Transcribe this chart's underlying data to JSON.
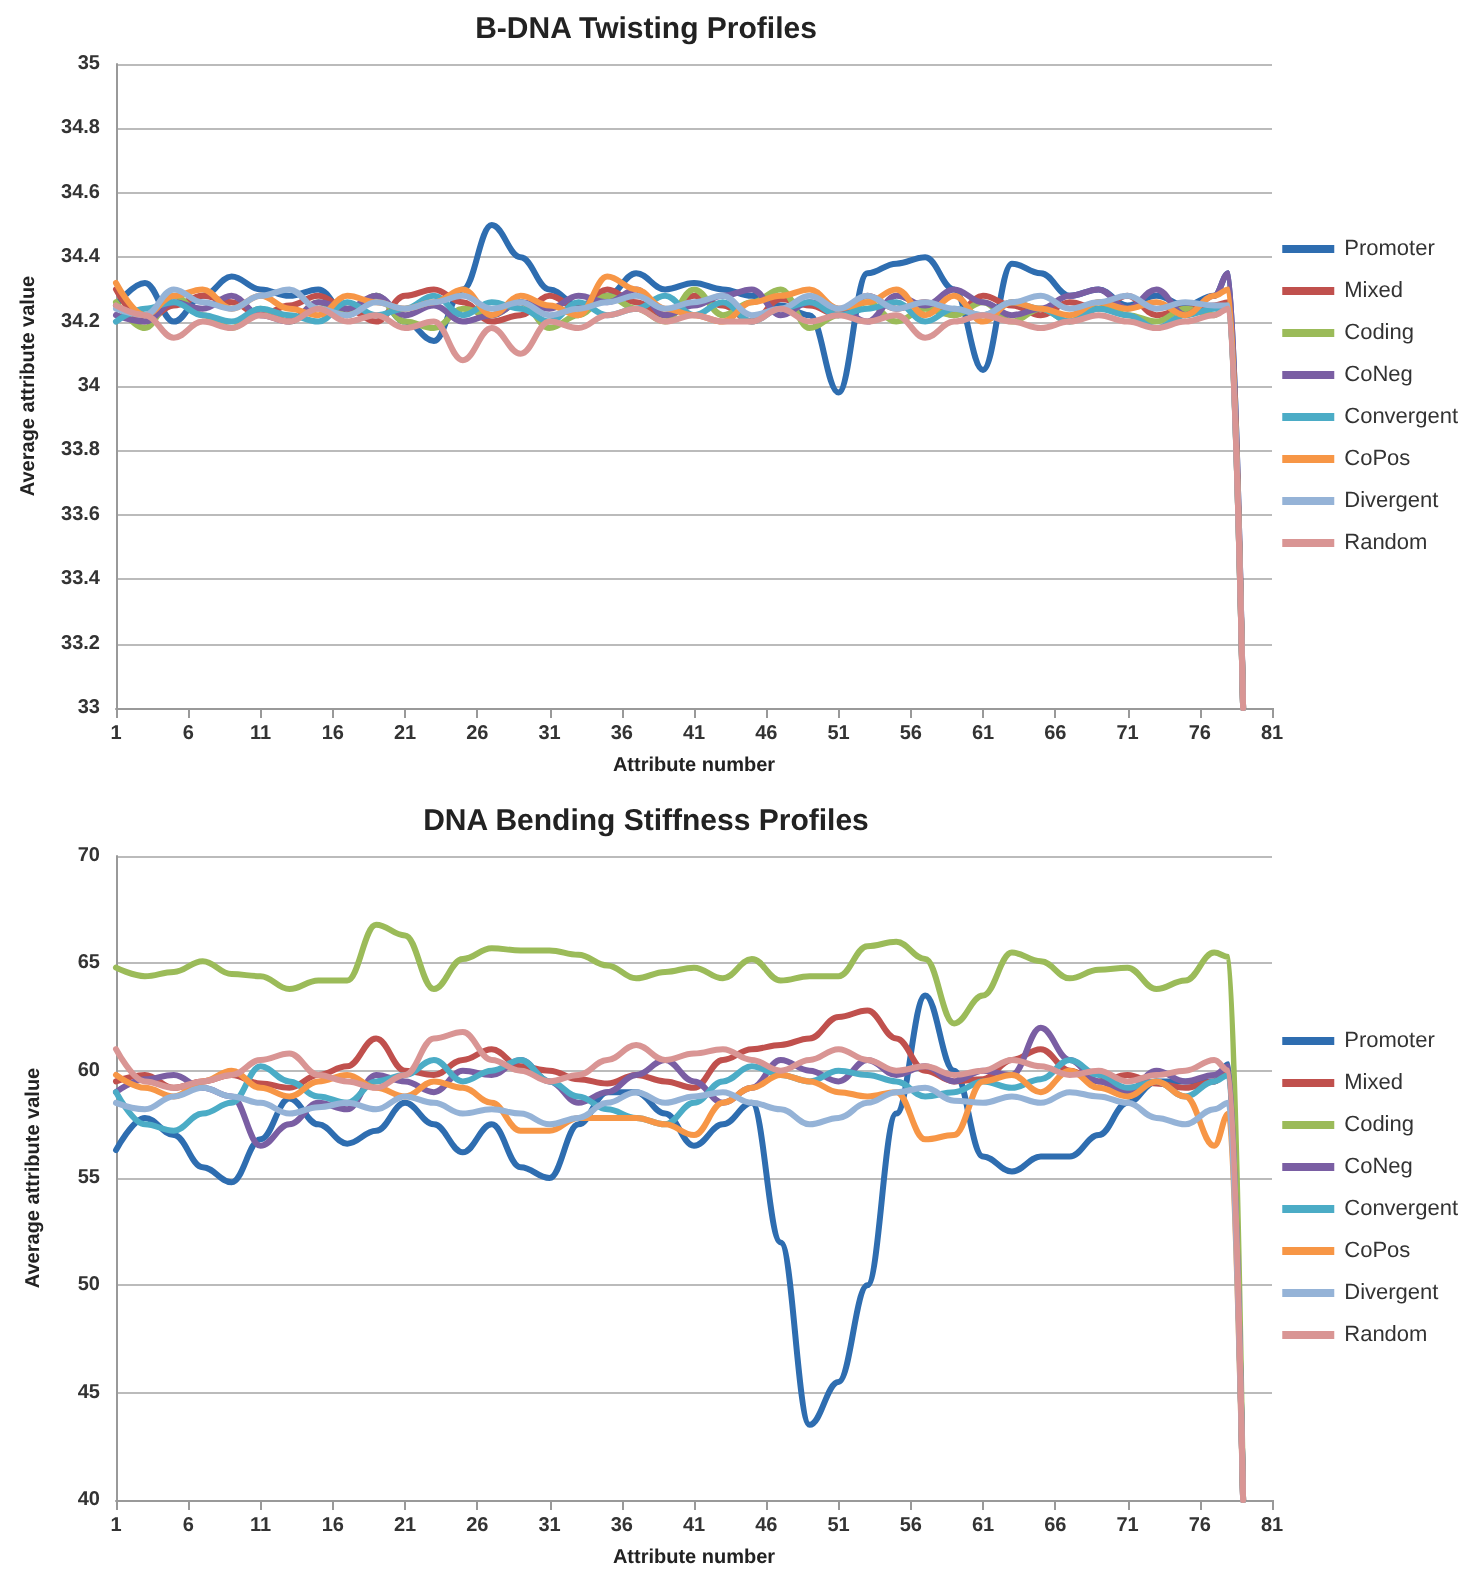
{
  "chart_data": [
    {
      "type": "line",
      "title": "B-DNA Twisting Profiles",
      "xlabel": "Attribute number",
      "ylabel": "Average attribute value",
      "x": [
        1,
        3,
        5,
        7,
        9,
        11,
        13,
        15,
        17,
        19,
        21,
        23,
        25,
        27,
        29,
        31,
        33,
        35,
        37,
        39,
        41,
        43,
        45,
        47,
        49,
        51,
        53,
        55,
        57,
        59,
        61,
        63,
        65,
        67,
        69,
        71,
        73,
        75,
        77,
        78,
        79
      ],
      "xlim": [
        1,
        81
      ],
      "xticks": [
        1,
        6,
        11,
        16,
        21,
        26,
        31,
        36,
        41,
        46,
        51,
        56,
        61,
        66,
        71,
        76,
        81
      ],
      "ylim": [
        33,
        35
      ],
      "yticks": [
        33,
        33.2,
        33.4,
        33.6,
        33.8,
        34,
        34.2,
        34.4,
        34.6,
        34.8,
        35
      ],
      "grid": "y",
      "legend": "right",
      "marker": "none",
      "series": [
        {
          "name": "Promoter",
          "color": "#2e6db0",
          "values": [
            34.25,
            34.32,
            34.2,
            34.28,
            34.34,
            34.3,
            34.28,
            34.3,
            34.22,
            34.28,
            34.2,
            34.14,
            34.3,
            34.5,
            34.4,
            34.3,
            34.25,
            34.28,
            34.35,
            34.3,
            34.32,
            34.3,
            34.28,
            34.25,
            34.22,
            33.98,
            34.35,
            34.38,
            34.4,
            34.3,
            34.05,
            34.38,
            34.35,
            34.28,
            34.3,
            34.25,
            34.28,
            34.25,
            34.28,
            34.35,
            33
          ]
        },
        {
          "name": "Mixed",
          "color": "#c0504d",
          "values": [
            34.3,
            34.2,
            34.25,
            34.28,
            34.26,
            34.22,
            34.25,
            34.28,
            34.24,
            34.2,
            34.28,
            34.3,
            34.26,
            34.2,
            34.22,
            34.28,
            34.24,
            34.3,
            34.26,
            34.22,
            34.28,
            34.25,
            34.2,
            34.27,
            34.25,
            34.22,
            34.28,
            34.24,
            34.26,
            34.22,
            34.28,
            34.25,
            34.22,
            34.26,
            34.24,
            34.28,
            34.22,
            34.24,
            34.25,
            34.26,
            33
          ]
        },
        {
          "name": "Coding",
          "color": "#9bbb59",
          "values": [
            34.26,
            34.18,
            34.28,
            34.22,
            34.18,
            34.24,
            34.2,
            34.26,
            34.22,
            34.28,
            34.2,
            34.18,
            34.24,
            34.22,
            34.26,
            34.18,
            34.22,
            34.28,
            34.24,
            34.2,
            34.3,
            34.22,
            34.26,
            34.3,
            34.18,
            34.22,
            34.26,
            34.2,
            34.24,
            34.22,
            34.26,
            34.2,
            34.24,
            34.2,
            34.26,
            34.22,
            34.2,
            34.24,
            34.22,
            34.25,
            33
          ]
        },
        {
          "name": "CoNeg",
          "color": "#7a5ea3",
          "values": [
            34.22,
            34.2,
            34.26,
            34.24,
            34.28,
            34.22,
            34.2,
            34.26,
            34.24,
            34.28,
            34.22,
            34.25,
            34.2,
            34.22,
            34.26,
            34.24,
            34.28,
            34.26,
            34.3,
            34.22,
            34.25,
            34.28,
            34.3,
            34.22,
            34.26,
            34.24,
            34.2,
            34.28,
            34.25,
            34.3,
            34.26,
            34.22,
            34.24,
            34.28,
            34.3,
            34.24,
            34.3,
            34.22,
            34.28,
            34.35,
            33
          ]
        },
        {
          "name": "Convergent",
          "color": "#4bacc6",
          "values": [
            34.2,
            34.24,
            34.26,
            34.22,
            34.2,
            34.24,
            34.22,
            34.2,
            34.26,
            34.22,
            34.24,
            34.28,
            34.22,
            34.26,
            34.24,
            34.2,
            34.26,
            34.22,
            34.24,
            34.28,
            34.22,
            34.26,
            34.2,
            34.24,
            34.26,
            34.22,
            34.24,
            34.26,
            34.2,
            34.24,
            34.22,
            34.26,
            34.24,
            34.2,
            34.24,
            34.22,
            34.18,
            34.22,
            34.24,
            34.25,
            33
          ]
        },
        {
          "name": "CoPos",
          "color": "#f79646",
          "values": [
            34.32,
            34.22,
            34.28,
            34.3,
            34.24,
            34.28,
            34.24,
            34.22,
            34.28,
            34.26,
            34.24,
            34.26,
            34.3,
            34.22,
            34.28,
            34.25,
            34.22,
            34.34,
            34.3,
            34.24,
            34.22,
            34.2,
            34.26,
            34.28,
            34.3,
            34.24,
            34.26,
            34.3,
            34.22,
            34.28,
            34.2,
            34.26,
            34.24,
            34.22,
            34.26,
            34.24,
            34.26,
            34.22,
            34.28,
            34.3,
            33
          ]
        },
        {
          "name": "Divergent",
          "color": "#95b3d7",
          "values": [
            34.24,
            34.22,
            34.3,
            34.26,
            34.24,
            34.28,
            34.3,
            34.24,
            34.22,
            34.26,
            34.24,
            34.26,
            34.28,
            34.24,
            34.26,
            34.22,
            34.24,
            34.26,
            34.28,
            34.24,
            34.26,
            34.28,
            34.22,
            34.24,
            34.28,
            34.24,
            34.28,
            34.24,
            34.26,
            34.24,
            34.22,
            34.26,
            34.28,
            34.24,
            34.26,
            34.28,
            34.24,
            34.26,
            34.25,
            34.25,
            33
          ]
        },
        {
          "name": "Random",
          "color": "#d99594",
          "values": [
            34.25,
            34.22,
            34.15,
            34.2,
            34.18,
            34.22,
            34.2,
            34.24,
            34.2,
            34.22,
            34.18,
            34.2,
            34.08,
            34.18,
            34.1,
            34.2,
            34.18,
            34.22,
            34.24,
            34.2,
            34.22,
            34.2,
            34.2,
            34.24,
            34.2,
            34.22,
            34.2,
            34.22,
            34.15,
            34.2,
            34.22,
            34.2,
            34.18,
            34.2,
            34.22,
            34.2,
            34.18,
            34.2,
            34.22,
            34.24,
            33
          ]
        }
      ]
    },
    {
      "type": "line",
      "title": "DNA Bending Stiffness Profiles",
      "xlabel": "Attribute number",
      "ylabel": "Average attribute value",
      "x": [
        1,
        3,
        5,
        7,
        9,
        11,
        13,
        15,
        17,
        19,
        21,
        23,
        25,
        27,
        29,
        31,
        33,
        35,
        37,
        39,
        41,
        43,
        45,
        47,
        49,
        51,
        53,
        55,
        57,
        59,
        61,
        63,
        65,
        67,
        69,
        71,
        73,
        75,
        77,
        78,
        79
      ],
      "xlim": [
        1,
        81
      ],
      "xticks": [
        1,
        6,
        11,
        16,
        21,
        26,
        31,
        36,
        41,
        46,
        51,
        56,
        61,
        66,
        71,
        76,
        81
      ],
      "ylim": [
        40,
        70
      ],
      "yticks": [
        40,
        45,
        50,
        55,
        60,
        65,
        70
      ],
      "grid": "y",
      "legend": "right",
      "marker": "none",
      "series": [
        {
          "name": "Promoter",
          "color": "#2e6db0",
          "values": [
            56.3,
            57.8,
            57,
            55.5,
            54.8,
            56.8,
            58.7,
            57.5,
            56.6,
            57.2,
            58.5,
            57.5,
            56.2,
            57.5,
            55.5,
            55,
            57.5,
            59,
            59,
            58,
            56.5,
            57.5,
            58.5,
            52,
            43.5,
            45.5,
            50,
            58,
            63.5,
            60,
            56,
            55.3,
            56,
            56,
            57,
            58.5,
            59.5,
            59.5,
            59.5,
            60.3,
            40
          ]
        },
        {
          "name": "Mixed",
          "color": "#c0504d",
          "values": [
            59.5,
            59.8,
            59.2,
            59.5,
            59.8,
            59.4,
            59.2,
            59.8,
            60.2,
            61.5,
            60,
            59.8,
            60.5,
            61,
            60.2,
            60,
            59.6,
            59.4,
            59.8,
            59.5,
            59.2,
            60.5,
            61,
            61.2,
            61.5,
            62.5,
            62.8,
            61.5,
            60,
            59.5,
            59.6,
            60.5,
            61,
            60,
            59.5,
            59.8,
            59.4,
            59.2,
            59.5,
            60,
            40
          ]
        },
        {
          "name": "Coding",
          "color": "#9bbb59",
          "values": [
            64.8,
            64.4,
            64.6,
            65.1,
            64.5,
            64.4,
            63.8,
            64.2,
            64.2,
            66.8,
            66.3,
            63.8,
            65.2,
            65.7,
            65.6,
            65.6,
            65.4,
            64.9,
            64.3,
            64.6,
            64.8,
            64.3,
            65.2,
            64.2,
            64.4,
            64.4,
            65.8,
            66,
            65.2,
            62.2,
            63.5,
            65.5,
            65.1,
            64.3,
            64.7,
            64.8,
            63.8,
            64.2,
            65.5,
            65.3,
            40
          ]
        },
        {
          "name": "CoNeg",
          "color": "#7a5ea3",
          "values": [
            59,
            59.6,
            59.8,
            59.2,
            58.8,
            56.5,
            57.5,
            58.5,
            58.2,
            59.8,
            59.5,
            59,
            60,
            59.8,
            60.5,
            59.5,
            58.5,
            59,
            59.8,
            60.5,
            59.5,
            58.5,
            59.2,
            60.5,
            60,
            59.5,
            60.5,
            59.8,
            60.2,
            59.5,
            60,
            59.8,
            62,
            60.5,
            59.5,
            59,
            60,
            59.5,
            59.8,
            60.2,
            40
          ]
        },
        {
          "name": "Convergent",
          "color": "#4bacc6",
          "values": [
            59,
            57.5,
            57.2,
            58,
            58.5,
            60.2,
            59.5,
            58.8,
            58.5,
            59.5,
            59.8,
            60.5,
            59.5,
            60,
            60.5,
            59.5,
            58.8,
            58.2,
            57.8,
            57.5,
            58.5,
            59.5,
            60.2,
            59.8,
            59.5,
            60,
            59.8,
            59.5,
            58.8,
            59,
            59.5,
            59.2,
            59.6,
            60.5,
            59.8,
            59.2,
            59.5,
            58.8,
            59.5,
            59.8,
            40
          ]
        },
        {
          "name": "CoPos",
          "color": "#f79646",
          "values": [
            59.8,
            59.2,
            58.8,
            59.5,
            60,
            59.2,
            58.8,
            59.5,
            59.8,
            59.2,
            58.8,
            59.5,
            59.2,
            58.5,
            57.2,
            57.2,
            57.8,
            57.8,
            57.8,
            57.5,
            57,
            58.5,
            59.2,
            59.8,
            59.5,
            59,
            58.8,
            59,
            56.8,
            57,
            59.5,
            59.8,
            59,
            60,
            59.2,
            58.8,
            59.5,
            58.8,
            56.5,
            58,
            40
          ]
        },
        {
          "name": "Divergent",
          "color": "#95b3d7",
          "values": [
            58.5,
            58.2,
            58.8,
            59.2,
            58.8,
            58.5,
            58,
            58.3,
            58.5,
            58.2,
            58.8,
            58.5,
            58,
            58.2,
            58,
            57.5,
            57.8,
            58.5,
            59,
            58.5,
            58.8,
            59,
            58.5,
            58.2,
            57.5,
            57.8,
            58.5,
            59,
            59.2,
            58.6,
            58.5,
            58.8,
            58.5,
            59,
            58.8,
            58.5,
            57.8,
            57.5,
            58.2,
            58.5,
            40
          ]
        },
        {
          "name": "Random",
          "color": "#d99594",
          "values": [
            61,
            59.5,
            59.2,
            59.5,
            59.8,
            60.5,
            60.8,
            59.8,
            59.5,
            59.2,
            59.8,
            61.5,
            61.8,
            60.5,
            60,
            59.5,
            59.8,
            60.5,
            61.2,
            60.5,
            60.8,
            61,
            60.5,
            60,
            60.5,
            61,
            60.5,
            60,
            60.2,
            59.8,
            60,
            60.5,
            60.2,
            59.8,
            60,
            59.5,
            59.8,
            60,
            60.5,
            60,
            40
          ]
        }
      ]
    }
  ]
}
